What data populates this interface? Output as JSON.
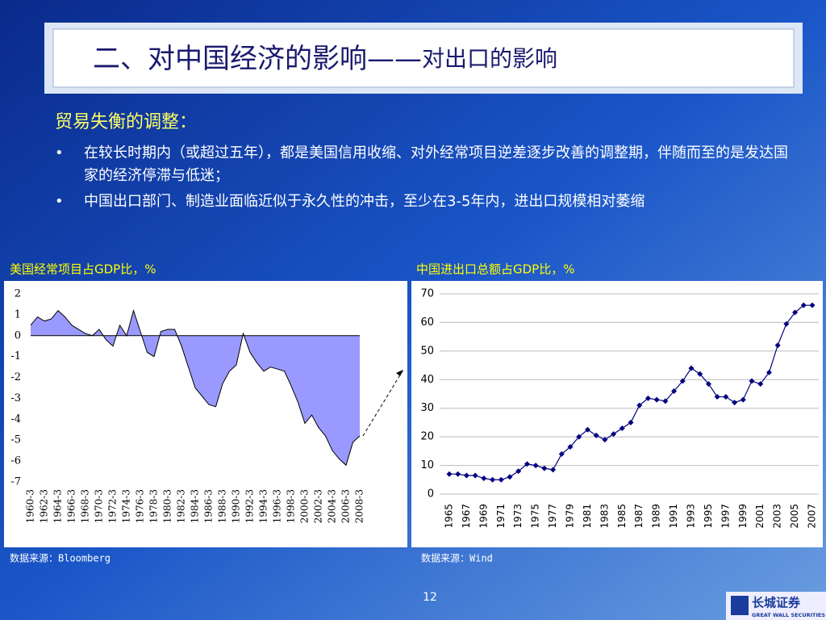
{
  "title": {
    "main": "二、对中国经济的影响——",
    "sub": "对出口的影响"
  },
  "heading": "贸易失衡的调整：",
  "bullets": [
    "在较长时期内（或超过五年），都是美国信用收缩、对外经常项目逆差逐步改善的调整期，伴随而至的是发达国家的经济停滞与低迷；",
    "中国出口部门、制造业面临近似于永久性的冲击，至少在3-5年内，进出口规模相对萎缩"
  ],
  "page_number": "12",
  "logo": {
    "name": "长城证券",
    "english": "GREAT WALL SECURITIES"
  },
  "chart_data": [
    {
      "type": "area",
      "title": "美国经常项目占GDP比，%",
      "source": "数据来源：Bloomberg",
      "color": "#9999ff",
      "categories": [
        "1960-3",
        null,
        "1962-3",
        null,
        "1964-3",
        null,
        "1966-3",
        null,
        "1968-3",
        null,
        "1970-3",
        null,
        "1972-3",
        null,
        "1974-3",
        null,
        "1976-3",
        null,
        "1978-3",
        null,
        "1980-3",
        null,
        "1982-3",
        null,
        "1984-3",
        null,
        "1986-3",
        null,
        "1988-3",
        null,
        "1990-3",
        null,
        "1992-3",
        null,
        "1994-3",
        null,
        "1996-3",
        null,
        "1998-3",
        null,
        "2000-3",
        null,
        "2002-3",
        null,
        "2004-3",
        null,
        "2006-3",
        null,
        "2008-3"
      ],
      "values": [
        0.5,
        0.9,
        0.7,
        0.8,
        1.2,
        0.9,
        0.5,
        0.3,
        0.1,
        0.0,
        0.3,
        -0.2,
        -0.5,
        0.5,
        0.0,
        1.2,
        0.2,
        -0.8,
        -1.0,
        0.2,
        0.3,
        0.3,
        -0.5,
        -1.5,
        -2.5,
        -2.9,
        -3.3,
        -3.4,
        -2.3,
        -1.7,
        -1.4,
        0.1,
        -0.8,
        -1.3,
        -1.7,
        -1.5,
        -1.6,
        -1.7,
        -2.4,
        -3.2,
        -4.2,
        -3.8,
        -4.4,
        -4.8,
        -5.5,
        -5.9,
        -6.2,
        -5.1,
        -4.8
      ],
      "ylim": [
        -7,
        2
      ],
      "yticks": [
        -7,
        -6,
        -5,
        -4,
        -3,
        -2,
        -1,
        0,
        1,
        2
      ],
      "grid": false
    },
    {
      "type": "line",
      "title": "中国进出口总额占GDP比，%",
      "source": "数据来源：Wind",
      "color": "#000080",
      "categories": [
        "1965",
        null,
        "1967",
        null,
        "1969",
        null,
        "1971",
        null,
        "1973",
        null,
        "1975",
        null,
        "1977",
        null,
        "1979",
        null,
        "1981",
        null,
        "1983",
        null,
        "1985",
        null,
        "1987",
        null,
        "1989",
        null,
        "1991",
        null,
        "1993",
        null,
        "1995",
        null,
        "1997",
        null,
        "1999",
        null,
        "2001",
        null,
        "2003",
        null,
        "2005",
        null,
        "2007"
      ],
      "values": [
        7,
        7,
        6.5,
        6.5,
        5.5,
        5,
        5,
        6,
        8,
        10.5,
        10,
        9,
        8.5,
        14,
        16.5,
        20,
        22.5,
        20.5,
        19,
        21,
        23,
        25,
        31,
        33.5,
        33,
        32.5,
        36,
        39.5,
        44,
        42,
        38.5,
        34,
        34,
        32,
        33,
        39.5,
        38.5,
        42.5,
        52,
        59.5,
        63.5,
        66,
        66
      ],
      "ylim": [
        0,
        70
      ],
      "yticks": [
        0,
        10,
        20,
        30,
        40,
        50,
        60,
        70
      ],
      "grid": true
    }
  ]
}
